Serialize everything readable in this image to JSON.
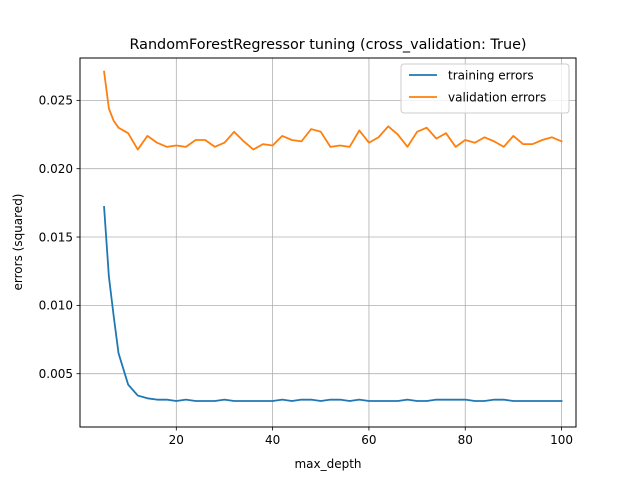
{
  "chart_data": {
    "type": "line",
    "title": "RandomForestRegressor tuning (cross_validation: True)",
    "xlabel": "max_depth",
    "ylabel": "errors (squared)",
    "xlim": [
      0,
      103
    ],
    "ylim": [
      0.0011,
      0.0281
    ],
    "grid": true,
    "legend_position": "top-right",
    "x_ticks": [
      20,
      40,
      60,
      80,
      100
    ],
    "x_tick_labels": [
      "20",
      "40",
      "60",
      "80",
      "100"
    ],
    "y_ticks": [
      0.005,
      0.01,
      0.015,
      0.02,
      0.025
    ],
    "y_tick_labels": [
      "0.005",
      "0.010",
      "0.015",
      "0.020",
      "0.025"
    ],
    "x": [
      5,
      6,
      7,
      8,
      10,
      12,
      14,
      16,
      18,
      20,
      22,
      24,
      26,
      28,
      30,
      32,
      34,
      36,
      38,
      40,
      42,
      44,
      46,
      48,
      50,
      52,
      54,
      56,
      58,
      60,
      62,
      64,
      66,
      68,
      70,
      72,
      74,
      76,
      78,
      80,
      82,
      84,
      86,
      88,
      90,
      92,
      94,
      96,
      98,
      100
    ],
    "series": [
      {
        "name": "training errors",
        "color": "#1f77b4",
        "values": [
          0.0172,
          0.0121,
          0.0092,
          0.0065,
          0.0042,
          0.0034,
          0.0032,
          0.0031,
          0.0031,
          0.003,
          0.0031,
          0.003,
          0.003,
          0.003,
          0.0031,
          0.003,
          0.003,
          0.003,
          0.003,
          0.003,
          0.0031,
          0.003,
          0.0031,
          0.0031,
          0.003,
          0.0031,
          0.0031,
          0.003,
          0.0031,
          0.003,
          0.003,
          0.003,
          0.003,
          0.0031,
          0.003,
          0.003,
          0.0031,
          0.0031,
          0.0031,
          0.0031,
          0.003,
          0.003,
          0.0031,
          0.0031,
          0.003,
          0.003,
          0.003,
          0.003,
          0.003,
          0.003
        ]
      },
      {
        "name": "validation errors",
        "color": "#ff7f0e",
        "values": [
          0.0271,
          0.0244,
          0.0235,
          0.023,
          0.0226,
          0.0214,
          0.0224,
          0.0219,
          0.0216,
          0.0217,
          0.0216,
          0.0221,
          0.0221,
          0.0216,
          0.0219,
          0.0227,
          0.022,
          0.0214,
          0.0218,
          0.0217,
          0.0224,
          0.0221,
          0.022,
          0.0229,
          0.0227,
          0.0216,
          0.0217,
          0.0216,
          0.0228,
          0.0219,
          0.0223,
          0.0231,
          0.0225,
          0.0216,
          0.0227,
          0.023,
          0.0222,
          0.0226,
          0.0216,
          0.0221,
          0.0219,
          0.0223,
          0.022,
          0.0216,
          0.0224,
          0.0218,
          0.0218,
          0.0221,
          0.0223,
          0.022
        ]
      }
    ]
  }
}
